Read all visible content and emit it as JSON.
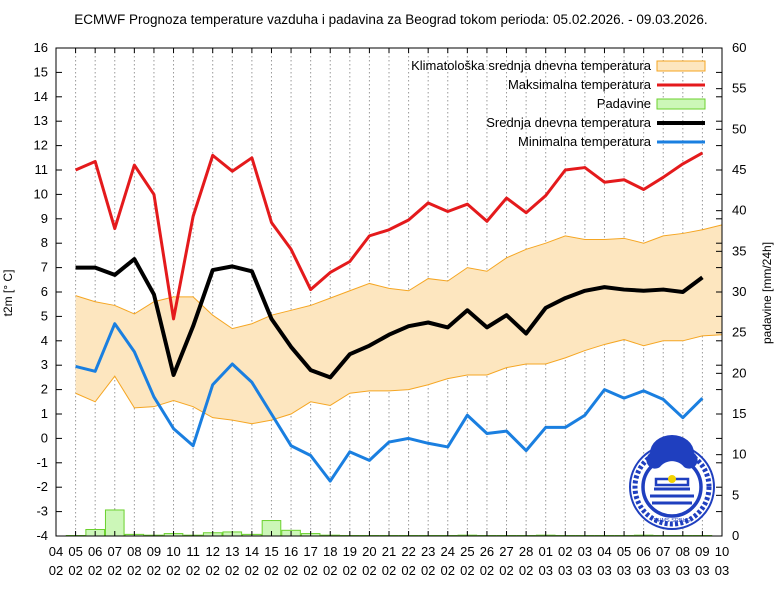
{
  "chart_data": {
    "type": "line",
    "title": "ECMWF Prognoza temperature vazduha i padavina za Beograd tokom perioda: 05.02.2026. - 09.03.2026.",
    "ylabel": "t2m [° C]",
    "y2label": "padavine [mm/24h]",
    "ylim": [
      -4,
      16
    ],
    "y2lim": [
      0,
      60
    ],
    "yticks": [
      "16",
      "15",
      "14",
      "13",
      "12",
      "11",
      "10",
      "9",
      "8",
      "7",
      "6",
      "5",
      "4",
      "3",
      "2",
      "1",
      "0",
      "-1",
      "-2",
      "-3",
      "-4"
    ],
    "y2ticks": [
      "60",
      "55",
      "50",
      "45",
      "40",
      "35",
      "30",
      "25",
      "20",
      "15",
      "10",
      "5",
      "0"
    ],
    "xticks_day": [
      "04",
      "05",
      "06",
      "07",
      "08",
      "09",
      "10",
      "11",
      "12",
      "13",
      "14",
      "15",
      "16",
      "17",
      "18",
      "19",
      "20",
      "21",
      "22",
      "23",
      "24",
      "25",
      "26",
      "27",
      "28",
      "01",
      "02",
      "03",
      "04",
      "05",
      "06",
      "07",
      "08",
      "09",
      "10"
    ],
    "xticks_month": [
      "02",
      "02",
      "02",
      "02",
      "02",
      "02",
      "02",
      "02",
      "02",
      "02",
      "02",
      "02",
      "02",
      "02",
      "02",
      "02",
      "02",
      "02",
      "02",
      "02",
      "02",
      "02",
      "02",
      "02",
      "02",
      "03",
      "03",
      "03",
      "03",
      "03",
      "03",
      "03",
      "03",
      "03",
      "03"
    ],
    "legend_position": "top-right",
    "series": [
      {
        "name": "Klimatološka srednja dnevna temperatura",
        "kind": "band",
        "color": "#f5a623",
        "fill": "#fde6bf",
        "upper": [
          5.85,
          5.6,
          5.45,
          5.1,
          5.6,
          5.8,
          5.8,
          5.05,
          4.5,
          4.7,
          5.05,
          5.25,
          5.45,
          5.75,
          6.05,
          6.35,
          6.15,
          6.05,
          6.55,
          6.45,
          7.0,
          6.85,
          7.4,
          7.75,
          8.0,
          8.3,
          8.15,
          8.15,
          8.2,
          8.0,
          8.3,
          8.4,
          8.55,
          8.75
        ],
        "lower": [
          1.85,
          1.5,
          2.55,
          1.25,
          1.3,
          1.55,
          1.3,
          0.85,
          0.75,
          0.6,
          0.75,
          1.0,
          1.5,
          1.35,
          1.85,
          1.95,
          1.95,
          2.0,
          2.2,
          2.45,
          2.6,
          2.6,
          2.9,
          3.05,
          3.05,
          3.3,
          3.6,
          3.85,
          4.05,
          3.8,
          4.0,
          4.0,
          4.2,
          4.25
        ]
      },
      {
        "name": "Maksimalna temperatura",
        "kind": "line",
        "color": "#e41a1c",
        "values": [
          11.0,
          11.35,
          8.6,
          11.2,
          10.0,
          4.9,
          9.1,
          11.6,
          10.95,
          11.5,
          8.85,
          7.75,
          6.1,
          6.8,
          7.25,
          8.3,
          8.55,
          8.95,
          9.65,
          9.3,
          9.6,
          8.9,
          9.85,
          9.25,
          9.95,
          11.0,
          11.1,
          10.5,
          10.6,
          10.2,
          10.7,
          11.25,
          11.7
        ]
      },
      {
        "name": "Padavine",
        "kind": "bar",
        "axis": "y2",
        "color": "#6bd12e",
        "fill": "#ccf7b8",
        "values": [
          0,
          0.8,
          3.2,
          0.2,
          0.1,
          0.3,
          0.1,
          0.4,
          0.5,
          0.2,
          1.9,
          0.7,
          0.3,
          0.1,
          0,
          0,
          0,
          0,
          0,
          0,
          0.1,
          0,
          0,
          0,
          0.1,
          0,
          0,
          0,
          0,
          0.1,
          0,
          0,
          0
        ]
      },
      {
        "name": "Srednja dnevna temperatura",
        "kind": "line",
        "color": "#000000",
        "values": [
          7.0,
          7.0,
          6.7,
          7.35,
          5.9,
          2.6,
          4.6,
          6.9,
          7.05,
          6.85,
          4.9,
          3.75,
          2.8,
          2.5,
          3.45,
          3.8,
          4.25,
          4.6,
          4.75,
          4.55,
          5.25,
          4.55,
          5.05,
          4.3,
          5.35,
          5.75,
          6.05,
          6.2,
          6.1,
          6.05,
          6.1,
          6.0,
          6.6
        ]
      },
      {
        "name": "Minimalna temperatura",
        "kind": "line",
        "color": "#1a7fe0",
        "values": [
          2.95,
          2.75,
          4.7,
          3.55,
          1.7,
          0.4,
          -0.3,
          2.2,
          3.05,
          2.3,
          1.0,
          -0.3,
          -0.7,
          -1.75,
          -0.55,
          -0.9,
          -0.15,
          0.0,
          -0.2,
          -0.35,
          0.95,
          0.2,
          0.3,
          -0.5,
          0.45,
          0.45,
          0.95,
          2.0,
          1.65,
          1.95,
          1.6,
          0.85,
          1.65
        ]
      }
    ]
  },
  "logo": {
    "caption": "RHMS SRBIJE"
  }
}
